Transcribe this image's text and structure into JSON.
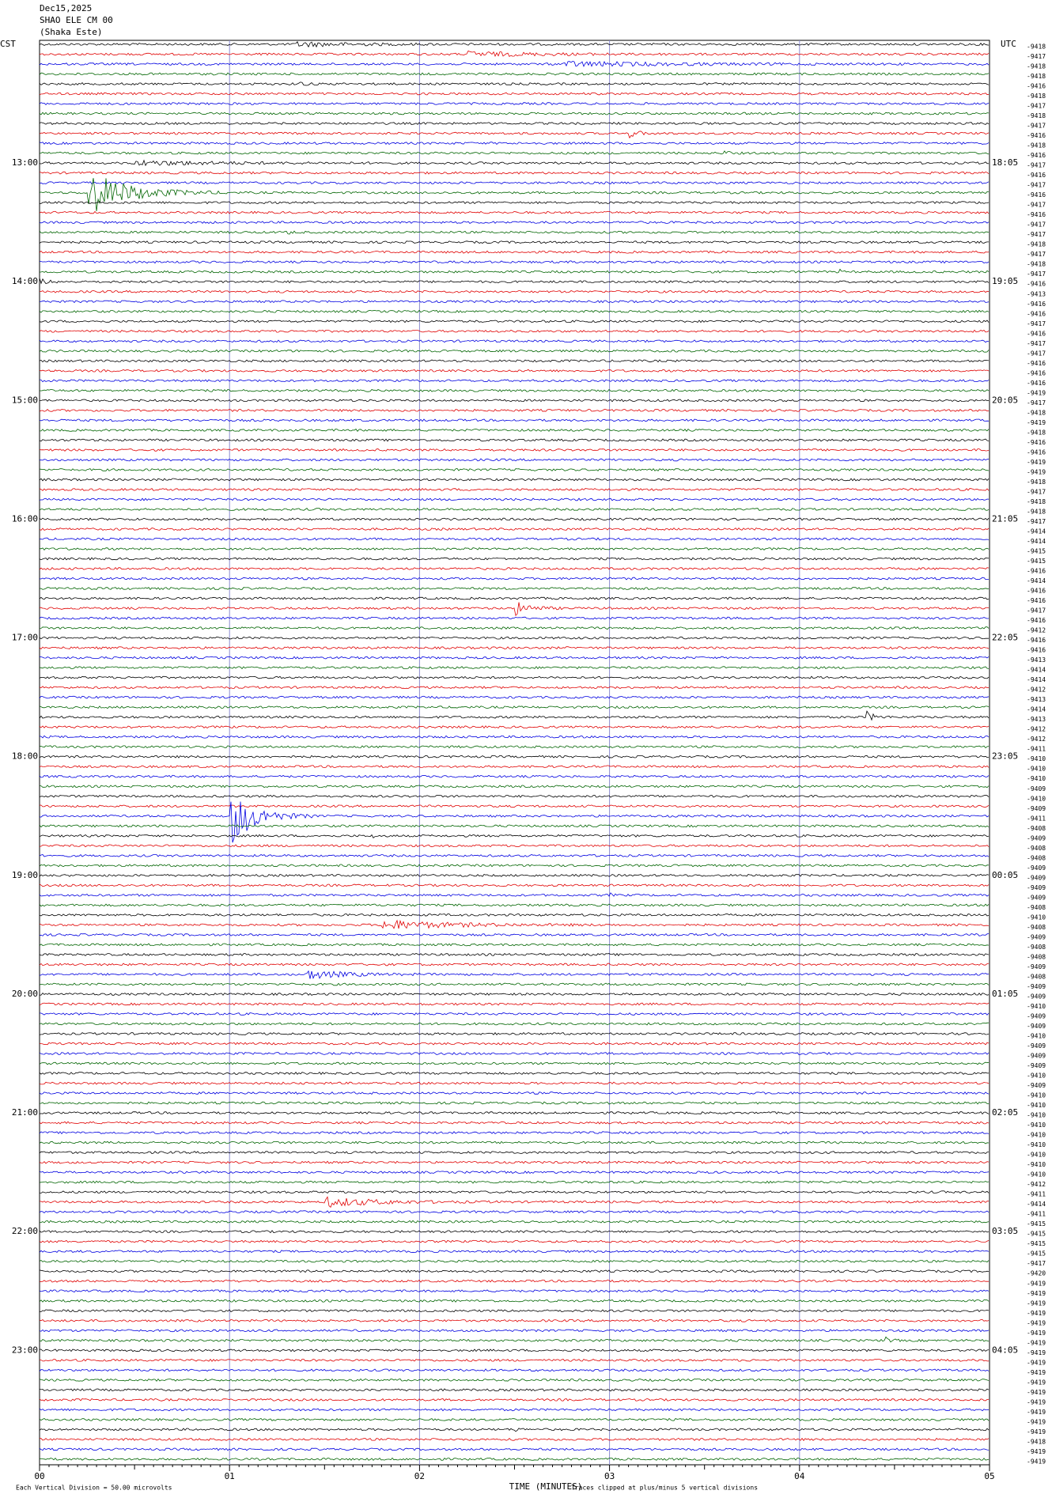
{
  "header": {
    "date": "Dec15,2025",
    "station": "SHAO ELE CM 00",
    "location": "(Shaka Este)"
  },
  "left_labels": [
    "CST",
    "13:00",
    "14:00",
    "15:00",
    "16:00",
    "17:00",
    "18:00",
    "19:00",
    "20:00",
    "21:00",
    "22:00",
    "23:00"
  ],
  "right_labels": [
    "UTC",
    "18:05",
    "19:05",
    "20:05",
    "21:05",
    "22:05",
    "23:05",
    "00:05",
    "01:05",
    "02:05",
    "03:05",
    "04:05"
  ],
  "trace_values": [
    -9418,
    -9417,
    -9418,
    -9418,
    -9416,
    -9418,
    -9417,
    -9418,
    -9417,
    -9416,
    -9418,
    -9416,
    -9417,
    -9416,
    -9417,
    -9416,
    -9417,
    -9416,
    -9417,
    -9417,
    -9418,
    -9417,
    -9418,
    -9417,
    -9416,
    -9413,
    -9416,
    -9416,
    -9417,
    -9416,
    -9417,
    -9417,
    -9416,
    -9416,
    -9416,
    -9419,
    -9417,
    -9418,
    -9419,
    -9418,
    -9416,
    -9416,
    -9419,
    -9419,
    -9418,
    -9417,
    -9418,
    -9418,
    -9417,
    -9414,
    -9414,
    -9415,
    -9415,
    -9416,
    -9414,
    -9416,
    -9416,
    -9417,
    -9416,
    -9412,
    -9416,
    -9416,
    -9413,
    -9414,
    -9414,
    -9412,
    -9413,
    -9414,
    -9413,
    -9412,
    -9412,
    -9411,
    -9410,
    -9410,
    -9410,
    -9409,
    -9410,
    -9409,
    -9411,
    -9408,
    -9409,
    -9408,
    -9408,
    -9409,
    -9409,
    -9409,
    -9409,
    -9408,
    -9410,
    -9408,
    -9409,
    -9408,
    -9408,
    -9409,
    -9408,
    -9409,
    -9409,
    -9410,
    -9409,
    -9409,
    -9410,
    -9409,
    -9409,
    -9409,
    -9410,
    -9409,
    -9410,
    -9410,
    -9410,
    -9410,
    -9410,
    -9410,
    -9410,
    -9410,
    -9410,
    -9412,
    -9411,
    -9414,
    -9411,
    -9415,
    -9415,
    -9415,
    -9415,
    -9417,
    -9420,
    -9419,
    -9419,
    -9419,
    -9419,
    -9419,
    -9419,
    -9419,
    -9419,
    -9419,
    -9419,
    -9419,
    -9419,
    -9419,
    -9419,
    -9419,
    -9419,
    -9418,
    -9419,
    -9419
  ],
  "x_axis": {
    "ticks": [
      "00",
      "01",
      "02",
      "03",
      "04",
      "05"
    ],
    "title": "TIME (MINUTES)"
  },
  "footer": {
    "scale": "Each Vertical Division = 50.00 microvolts",
    "clip": "Traces clipped at plus/minus 5 vertical divisions"
  }
}
